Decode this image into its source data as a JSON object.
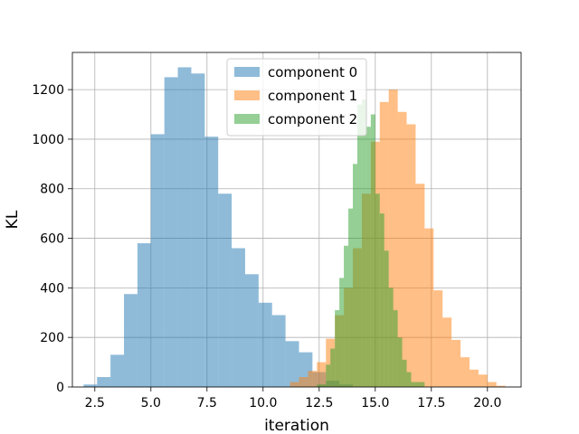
{
  "chart_data": {
    "type": "histogram",
    "title": "",
    "xlabel": "iteration",
    "ylabel": "KL",
    "xlim": [
      1.5,
      21.5
    ],
    "ylim": [
      0,
      1350
    ],
    "xticks": [
      2.5,
      5.0,
      7.5,
      10.0,
      12.5,
      15.0,
      17.5,
      20.0
    ],
    "xtick_labels": [
      "2.5",
      "5.0",
      "7.5",
      "10.0",
      "12.5",
      "15.0",
      "17.5",
      "20.0"
    ],
    "yticks": [
      0,
      200,
      400,
      600,
      800,
      1000,
      1200
    ],
    "ytick_labels": [
      "0",
      "200",
      "400",
      "600",
      "800",
      "1000",
      "1200"
    ],
    "grid": true,
    "legend_position": "top-center",
    "series": [
      {
        "name": "component 0",
        "color": "#1f77b4",
        "alpha": 0.5,
        "bins": [
          [
            2.0,
            2.6,
            10
          ],
          [
            2.6,
            3.2,
            40
          ],
          [
            3.2,
            3.8,
            130
          ],
          [
            3.8,
            4.4,
            375
          ],
          [
            4.4,
            5.0,
            580
          ],
          [
            5.0,
            5.6,
            1020
          ],
          [
            5.6,
            6.2,
            1250
          ],
          [
            6.2,
            6.8,
            1290
          ],
          [
            6.8,
            7.4,
            1265
          ],
          [
            7.4,
            8.0,
            1010
          ],
          [
            8.0,
            8.6,
            780
          ],
          [
            8.6,
            9.2,
            560
          ],
          [
            9.2,
            9.8,
            455
          ],
          [
            9.8,
            10.4,
            340
          ],
          [
            10.4,
            11.0,
            290
          ],
          [
            11.0,
            11.6,
            185
          ],
          [
            11.6,
            12.2,
            140
          ],
          [
            12.2,
            12.8,
            60
          ],
          [
            12.8,
            13.4,
            25
          ],
          [
            13.4,
            14.0,
            10
          ]
        ]
      },
      {
        "name": "component 1",
        "color": "#ff7f0e",
        "alpha": 0.5,
        "bins": [
          [
            11.2,
            11.6,
            20
          ],
          [
            11.6,
            12.0,
            40
          ],
          [
            12.0,
            12.4,
            65
          ],
          [
            12.4,
            12.8,
            100
          ],
          [
            12.8,
            13.2,
            195
          ],
          [
            13.2,
            13.6,
            290
          ],
          [
            13.6,
            14.0,
            400
          ],
          [
            14.0,
            14.4,
            560
          ],
          [
            14.4,
            14.8,
            780
          ],
          [
            14.8,
            15.2,
            990
          ],
          [
            15.2,
            15.6,
            1150
          ],
          [
            15.6,
            16.0,
            1200
          ],
          [
            16.0,
            16.4,
            1110
          ],
          [
            16.4,
            16.8,
            1060
          ],
          [
            16.8,
            17.2,
            820
          ],
          [
            17.2,
            17.6,
            640
          ],
          [
            17.6,
            18.0,
            390
          ],
          [
            18.0,
            18.4,
            280
          ],
          [
            18.4,
            18.8,
            190
          ],
          [
            18.8,
            19.2,
            120
          ],
          [
            19.2,
            19.6,
            70
          ],
          [
            19.6,
            20.0,
            50
          ],
          [
            20.0,
            20.4,
            20
          ],
          [
            20.4,
            20.8,
            5
          ]
        ]
      },
      {
        "name": "component 2",
        "color": "#2ca02c",
        "alpha": 0.5,
        "bins": [
          [
            12.4,
            12.8,
            10
          ],
          [
            12.8,
            13.0,
            90
          ],
          [
            13.0,
            13.2,
            155
          ],
          [
            13.2,
            13.4,
            310
          ],
          [
            13.4,
            13.6,
            440
          ],
          [
            13.6,
            13.8,
            570
          ],
          [
            13.8,
            14.0,
            720
          ],
          [
            14.0,
            14.2,
            900
          ],
          [
            14.2,
            14.4,
            1140
          ],
          [
            14.4,
            14.6,
            1160
          ],
          [
            14.6,
            14.8,
            1050
          ],
          [
            14.8,
            15.0,
            1100
          ],
          [
            15.0,
            15.2,
            780
          ],
          [
            15.2,
            15.4,
            700
          ],
          [
            15.4,
            15.6,
            550
          ],
          [
            15.6,
            15.8,
            400
          ],
          [
            15.8,
            16.0,
            310
          ],
          [
            16.0,
            16.2,
            200
          ],
          [
            16.2,
            16.4,
            110
          ],
          [
            16.4,
            16.6,
            60
          ],
          [
            16.6,
            17.2,
            20
          ]
        ]
      }
    ]
  }
}
